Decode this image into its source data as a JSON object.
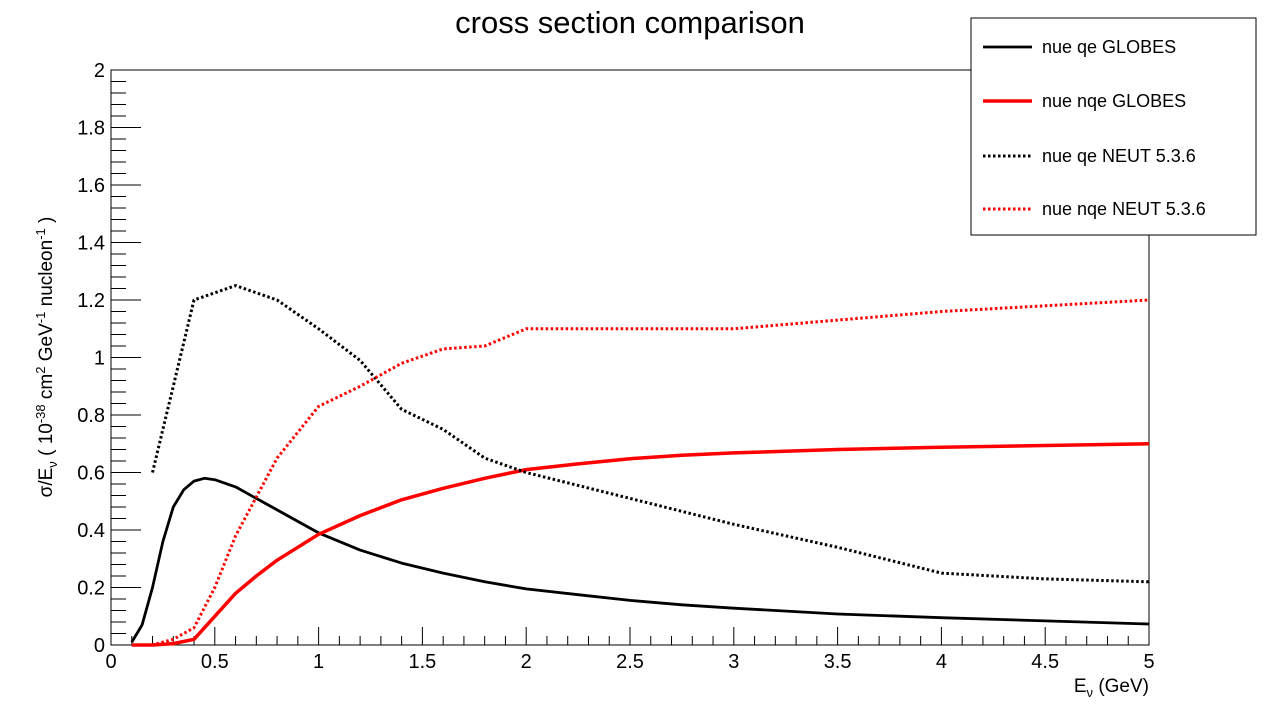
{
  "chart_data": {
    "type": "line",
    "title": "cross section comparison",
    "xlabel": "E_ν (GeV)",
    "ylabel": "σ/E_ν ( 10^-38 cm^2 GeV^-1 nucleon^-1 )",
    "xlim": [
      0,
      5
    ],
    "ylim": [
      0,
      2
    ],
    "x_ticks": [
      "0",
      "0.5",
      "1",
      "1.5",
      "2",
      "2.5",
      "3",
      "3.5",
      "4",
      "4.5",
      "5"
    ],
    "y_ticks": [
      "0",
      "0.2",
      "0.4",
      "0.6",
      "0.8",
      "1",
      "1.2",
      "1.4",
      "1.6",
      "1.8",
      "2"
    ],
    "grid": false,
    "legend_position": "top-right",
    "series": [
      {
        "name": "nue qe GLOBES",
        "color": "#000000",
        "style": "solid",
        "points": [
          [
            0.1,
            0.01
          ],
          [
            0.15,
            0.07
          ],
          [
            0.2,
            0.2
          ],
          [
            0.25,
            0.36
          ],
          [
            0.3,
            0.48
          ],
          [
            0.35,
            0.54
          ],
          [
            0.4,
            0.57
          ],
          [
            0.45,
            0.58
          ],
          [
            0.5,
            0.575
          ],
          [
            0.6,
            0.55
          ],
          [
            0.7,
            0.51
          ],
          [
            0.8,
            0.47
          ],
          [
            0.9,
            0.43
          ],
          [
            1.0,
            0.39
          ],
          [
            1.2,
            0.33
          ],
          [
            1.4,
            0.285
          ],
          [
            1.6,
            0.25
          ],
          [
            1.8,
            0.22
          ],
          [
            2.0,
            0.195
          ],
          [
            2.25,
            0.175
          ],
          [
            2.5,
            0.155
          ],
          [
            2.75,
            0.14
          ],
          [
            3.0,
            0.128
          ],
          [
            3.5,
            0.108
          ],
          [
            4.0,
            0.095
          ],
          [
            4.5,
            0.084
          ],
          [
            5.0,
            0.073
          ]
        ]
      },
      {
        "name": "nue nqe GLOBES",
        "color": "#ff0000",
        "style": "solid",
        "points": [
          [
            0.1,
            0.0
          ],
          [
            0.2,
            0.0
          ],
          [
            0.3,
            0.005
          ],
          [
            0.4,
            0.02
          ],
          [
            0.45,
            0.06
          ],
          [
            0.5,
            0.1
          ],
          [
            0.6,
            0.18
          ],
          [
            0.7,
            0.24
          ],
          [
            0.8,
            0.295
          ],
          [
            0.9,
            0.34
          ],
          [
            1.0,
            0.385
          ],
          [
            1.2,
            0.45
          ],
          [
            1.4,
            0.505
          ],
          [
            1.6,
            0.545
          ],
          [
            1.8,
            0.58
          ],
          [
            2.0,
            0.61
          ],
          [
            2.25,
            0.63
          ],
          [
            2.5,
            0.648
          ],
          [
            2.75,
            0.66
          ],
          [
            3.0,
            0.668
          ],
          [
            3.5,
            0.68
          ],
          [
            4.0,
            0.688
          ],
          [
            4.5,
            0.694
          ],
          [
            5.0,
            0.7
          ]
        ]
      },
      {
        "name": "nue qe NEUT 5.3.6",
        "color": "#000000",
        "style": "dotted",
        "points": [
          [
            0.2,
            0.6
          ],
          [
            0.4,
            1.2
          ],
          [
            0.6,
            1.25
          ],
          [
            0.8,
            1.2
          ],
          [
            1.0,
            1.1
          ],
          [
            1.2,
            0.99
          ],
          [
            1.4,
            0.82
          ],
          [
            1.6,
            0.75
          ],
          [
            1.8,
            0.65
          ],
          [
            2.0,
            0.6
          ],
          [
            2.5,
            0.51
          ],
          [
            3.0,
            0.42
          ],
          [
            3.5,
            0.34
          ],
          [
            4.0,
            0.25
          ],
          [
            4.5,
            0.23
          ],
          [
            5.0,
            0.22
          ]
        ]
      },
      {
        "name": "nue nqe NEUT 5.3.6",
        "color": "#ff0000",
        "style": "dotted",
        "points": [
          [
            0.1,
            0.0
          ],
          [
            0.2,
            0.0
          ],
          [
            0.3,
            0.02
          ],
          [
            0.4,
            0.06
          ],
          [
            0.5,
            0.2
          ],
          [
            0.6,
            0.38
          ],
          [
            0.8,
            0.65
          ],
          [
            1.0,
            0.83
          ],
          [
            1.2,
            0.9
          ],
          [
            1.4,
            0.98
          ],
          [
            1.6,
            1.03
          ],
          [
            1.8,
            1.04
          ],
          [
            2.0,
            1.1
          ],
          [
            2.5,
            1.1
          ],
          [
            3.0,
            1.1
          ],
          [
            3.5,
            1.13
          ],
          [
            4.0,
            1.16
          ],
          [
            4.5,
            1.18
          ],
          [
            5.0,
            1.2
          ]
        ]
      }
    ]
  }
}
